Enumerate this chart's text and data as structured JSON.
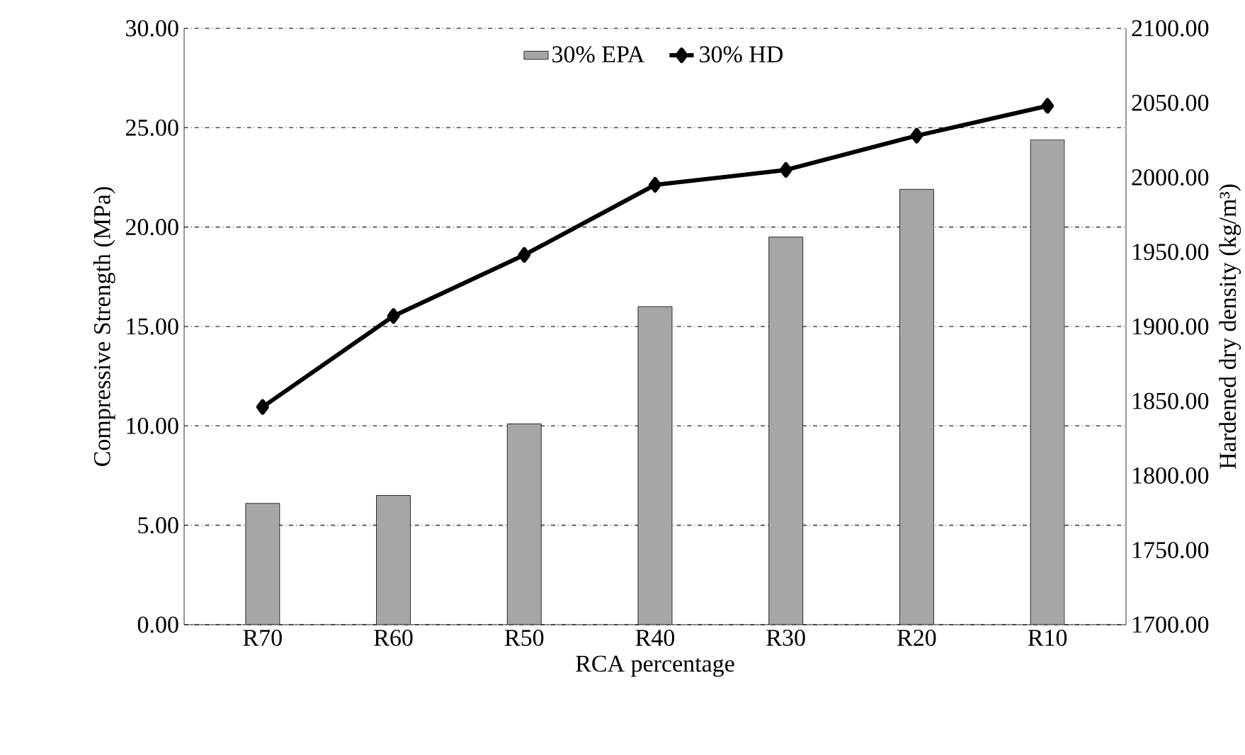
{
  "chart_data": {
    "type": "bar",
    "xlabel": "RCA percentage",
    "ylabel": "Compressive Strength (MPa)",
    "y2label": "Hardened dry density (kg/m³)",
    "categories": [
      "R70",
      "R60",
      "R50",
      "R40",
      "R30",
      "R20",
      "R10"
    ],
    "series": [
      {
        "name": "30% EPA",
        "color": "#a6a6a6",
        "values": [
          6.1,
          6.5,
          10.1,
          16.0,
          19.5,
          21.9,
          24.4
        ]
      },
      {
        "name": "30% HD",
        "type": "line",
        "axis": "y2",
        "color": "#000000",
        "marker": "diamond",
        "line_style": "solid",
        "values": [
          1846,
          1907,
          1948,
          1995,
          2005,
          2028,
          2048
        ]
      }
    ],
    "ylim": [
      0,
      30
    ],
    "yticks": [
      {
        "value": 0,
        "label": "0.00"
      },
      {
        "value": 5,
        "label": "5.00"
      },
      {
        "value": 10,
        "label": "10.00"
      },
      {
        "value": 15,
        "label": "15.00"
      },
      {
        "value": 20,
        "label": "20.00"
      },
      {
        "value": 25,
        "label": "25.00"
      },
      {
        "value": 30,
        "label": "30.00"
      }
    ],
    "y2lim": [
      1700,
      2100
    ],
    "y2ticks": [
      {
        "value": 1700,
        "label": "1700.00"
      },
      {
        "value": 1750,
        "label": "1750.00"
      },
      {
        "value": 1800,
        "label": "1800.00"
      },
      {
        "value": 1850,
        "label": "1850.00"
      },
      {
        "value": 1900,
        "label": "1900.00"
      },
      {
        "value": 1950,
        "label": "1950.00"
      },
      {
        "value": 2000,
        "label": "2000.00"
      },
      {
        "value": 2050,
        "label": "2050.00"
      },
      {
        "value": 2100,
        "label": "2100.00"
      }
    ],
    "grid": "y",
    "legend": "top"
  }
}
